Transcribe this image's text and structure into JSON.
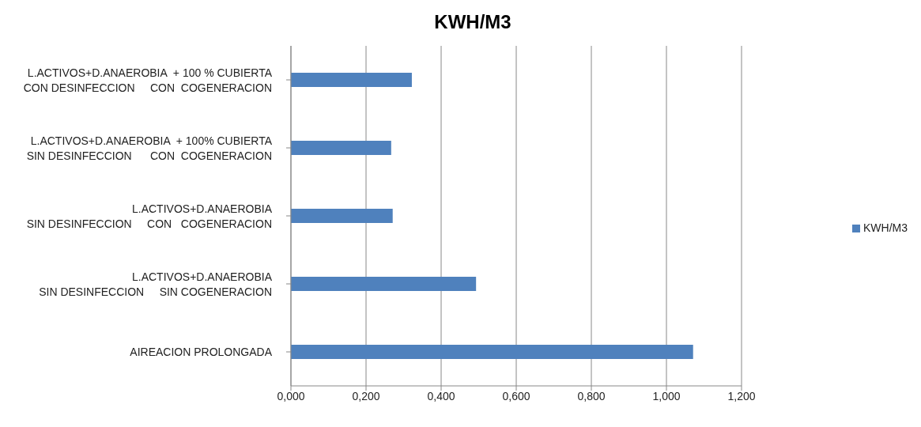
{
  "chart_data": {
    "type": "bar",
    "orientation": "horizontal",
    "title": "KWH/M3",
    "categories": [
      "L.ACTIVOS+D.ANAEROBIA  + 100 % CUBIERTA\nCON DESINFECCION     CON  COGENERACION",
      "L.ACTIVOS+D.ANAEROBIA  + 100% CUBIERTA\nSIN DESINFECCION      CON  COGENERACION",
      "L.ACTIVOS+D.ANAEROBIA\nSIN DESINFECCION     CON   COGENERACION",
      "L.ACTIVOS+D.ANAEROBIA\nSIN DESINFECCION     SIN COGENERACION",
      "AIREACION PROLONGADA"
    ],
    "series": [
      {
        "name": "KWH/M3",
        "color": "#4f81bd",
        "values": [
          0.322,
          0.267,
          0.271,
          0.493,
          1.071
        ]
      }
    ],
    "xlim": [
      0,
      1.2
    ],
    "xticks": [
      {
        "value": 0,
        "label": "0,000"
      },
      {
        "value": 0.2,
        "label": "0,200"
      },
      {
        "value": 0.4,
        "label": "0,400"
      },
      {
        "value": 0.6,
        "label": "0,600"
      },
      {
        "value": 0.8,
        "label": "0,800"
      },
      {
        "value": 1,
        "label": "1,000"
      },
      {
        "value": 1.2,
        "label": "1,200"
      }
    ],
    "grid": "x",
    "legend": "right"
  }
}
